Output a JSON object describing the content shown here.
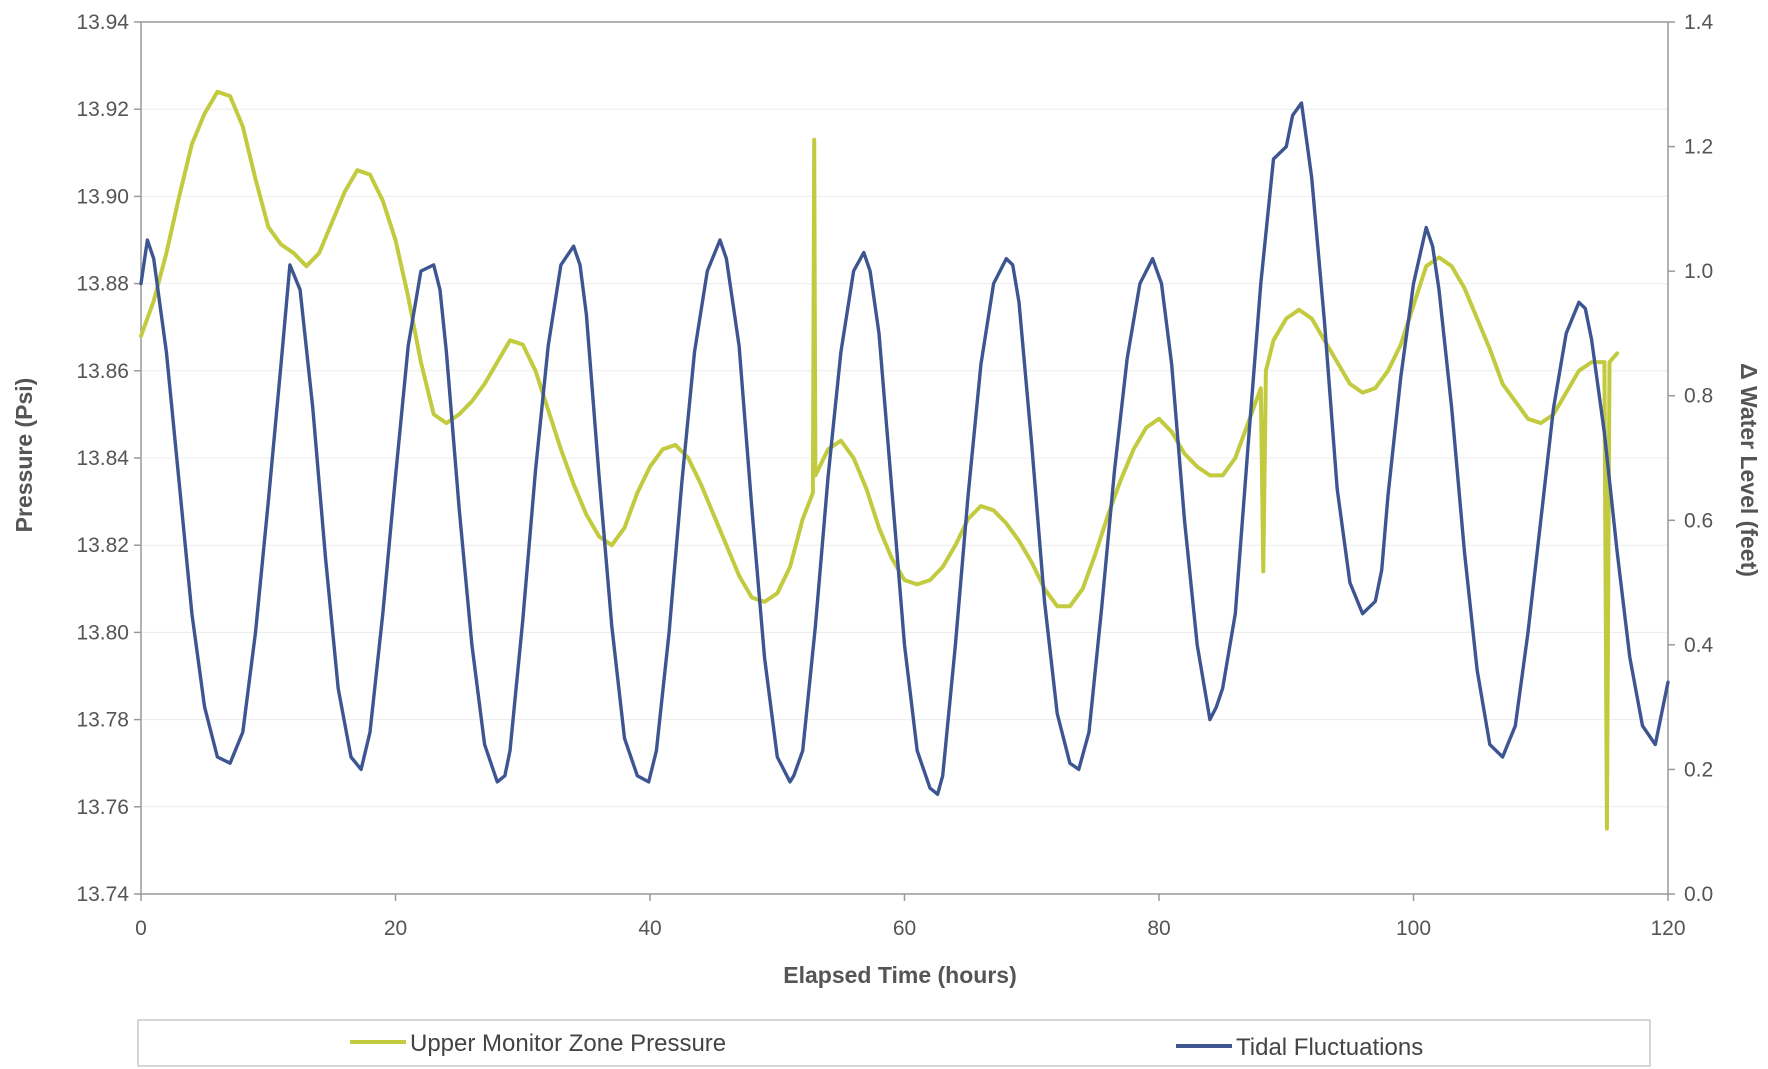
{
  "chart_data": {
    "type": "line",
    "xlabel": "Elapsed Time (hours)",
    "ylabel_left": "Pressure (Psi)",
    "ylabel_right": "Δ Water Level (feet)",
    "xlim": [
      0,
      120
    ],
    "ylim_left": [
      13.74,
      13.94
    ],
    "ylim_right": [
      0.0,
      1.4
    ],
    "x_ticks": [
      "0",
      "20",
      "40",
      "60",
      "80",
      "100",
      "120"
    ],
    "y_left_ticks": [
      "13.74",
      "13.76",
      "13.78",
      "13.80",
      "13.82",
      "13.84",
      "13.86",
      "13.88",
      "13.90",
      "13.92",
      "13.94"
    ],
    "y_right_ticks": [
      "0.0",
      "0.2",
      "0.4",
      "0.6",
      "0.8",
      "1.0",
      "1.2",
      "1.4"
    ],
    "grid": "horizontal",
    "legend": "bottom",
    "colors": {
      "pressure": "#c2cb3f",
      "tidal": "#3d5591",
      "axis": "#999999",
      "grid": "#ececec"
    },
    "series": [
      {
        "name": "Upper Monitor Zone Pressure",
        "axis": "left",
        "x": [
          0,
          1,
          2,
          3,
          4,
          5,
          6,
          7,
          8,
          9,
          10,
          11,
          12,
          13,
          14,
          15,
          16,
          17,
          18,
          19,
          20,
          21,
          22,
          23,
          24,
          25,
          26,
          27,
          28,
          29,
          30,
          31,
          32,
          33,
          34,
          35,
          36,
          37,
          38,
          39,
          40,
          41,
          42,
          43,
          44,
          45,
          46,
          47,
          48,
          49,
          50,
          51,
          52,
          52.8,
          52.9,
          53,
          54,
          55,
          56,
          57,
          58,
          59,
          60,
          61,
          62,
          63,
          64,
          65,
          66,
          67,
          68,
          69,
          70,
          71,
          72,
          73,
          74,
          75,
          76,
          77,
          78,
          79,
          80,
          81,
          82,
          83,
          84,
          85,
          86,
          87,
          88,
          88.2,
          88.4,
          89,
          90,
          91,
          92,
          93,
          94,
          95,
          96,
          97,
          98,
          99,
          100,
          101,
          102,
          103,
          104,
          105,
          106,
          107,
          108,
          109,
          110,
          111,
          112,
          113,
          114,
          115,
          115.2,
          115.4,
          116
        ],
        "y": [
          13.868,
          13.876,
          13.887,
          13.9,
          13.912,
          13.919,
          13.924,
          13.923,
          13.916,
          13.904,
          13.893,
          13.889,
          13.887,
          13.884,
          13.887,
          13.894,
          13.901,
          13.906,
          13.905,
          13.899,
          13.89,
          13.877,
          13.862,
          13.85,
          13.848,
          13.85,
          13.853,
          13.857,
          13.862,
          13.867,
          13.866,
          13.86,
          13.851,
          13.842,
          13.834,
          13.827,
          13.822,
          13.82,
          13.824,
          13.832,
          13.838,
          13.842,
          13.843,
          13.84,
          13.834,
          13.827,
          13.82,
          13.813,
          13.808,
          13.807,
          13.809,
          13.815,
          13.826,
          13.832,
          13.913,
          13.836,
          13.842,
          13.844,
          13.84,
          13.833,
          13.824,
          13.817,
          13.812,
          13.811,
          13.812,
          13.815,
          13.82,
          13.826,
          13.829,
          13.828,
          13.825,
          13.821,
          13.816,
          13.81,
          13.806,
          13.806,
          13.81,
          13.818,
          13.827,
          13.835,
          13.842,
          13.847,
          13.849,
          13.846,
          13.841,
          13.838,
          13.836,
          13.836,
          13.84,
          13.848,
          13.856,
          13.814,
          13.86,
          13.867,
          13.872,
          13.874,
          13.872,
          13.867,
          13.862,
          13.857,
          13.855,
          13.856,
          13.86,
          13.866,
          13.875,
          13.884,
          13.886,
          13.884,
          13.879,
          13.872,
          13.865,
          13.857,
          13.853,
          13.849,
          13.848,
          13.85,
          13.855,
          13.86,
          13.862,
          13.862,
          13.755,
          13.862,
          13.864
        ]
      },
      {
        "name": "Tidal Fluctuations",
        "axis": "right",
        "x": [
          0,
          0.5,
          1,
          2,
          3,
          4,
          5,
          6,
          7,
          8,
          9,
          10,
          11,
          11.7,
          12.5,
          13.5,
          14.5,
          15.5,
          16.5,
          17.3,
          18,
          19,
          20,
          21,
          22,
          23,
          23.5,
          24,
          25,
          26,
          27,
          28,
          28.6,
          29,
          30,
          31,
          32,
          33,
          34,
          34.5,
          35,
          36,
          37,
          38,
          39,
          39.9,
          40.5,
          41.5,
          42.5,
          43.5,
          44.5,
          45.5,
          46,
          47,
          48,
          49,
          50,
          51,
          51.3,
          52,
          53,
          54,
          55,
          56,
          56.8,
          57.3,
          58,
          59,
          60,
          61,
          62,
          62.6,
          63,
          64,
          65,
          66,
          67,
          68,
          68.5,
          69,
          70,
          71,
          72,
          73,
          73.7,
          74.5,
          75.5,
          76.5,
          77.5,
          78.5,
          79.5,
          80.2,
          81,
          82,
          83,
          84,
          84.5,
          85,
          86,
          87,
          88,
          89,
          90,
          90.5,
          91.2,
          92,
          93,
          94,
          95,
          96,
          97,
          97.5,
          98,
          99,
          100,
          101,
          101.5,
          102,
          103,
          104,
          105,
          106,
          107,
          108,
          109,
          110,
          111,
          112,
          113,
          113.5,
          114,
          115,
          116,
          117,
          118,
          119,
          120
        ],
        "y": [
          0.98,
          1.05,
          1.02,
          0.87,
          0.66,
          0.45,
          0.3,
          0.22,
          0.21,
          0.26,
          0.42,
          0.63,
          0.85,
          1.01,
          0.97,
          0.78,
          0.54,
          0.33,
          0.22,
          0.2,
          0.26,
          0.45,
          0.67,
          0.88,
          1.0,
          1.01,
          0.97,
          0.87,
          0.62,
          0.4,
          0.24,
          0.18,
          0.19,
          0.23,
          0.44,
          0.68,
          0.88,
          1.01,
          1.04,
          1.01,
          0.93,
          0.67,
          0.43,
          0.25,
          0.19,
          0.18,
          0.23,
          0.42,
          0.66,
          0.87,
          1.0,
          1.05,
          1.02,
          0.88,
          0.62,
          0.38,
          0.22,
          0.18,
          0.19,
          0.23,
          0.43,
          0.67,
          0.87,
          1.0,
          1.03,
          1.0,
          0.9,
          0.65,
          0.4,
          0.23,
          0.17,
          0.16,
          0.19,
          0.4,
          0.64,
          0.85,
          0.98,
          1.02,
          1.01,
          0.95,
          0.72,
          0.47,
          0.29,
          0.21,
          0.2,
          0.26,
          0.46,
          0.68,
          0.86,
          0.98,
          1.02,
          0.98,
          0.85,
          0.6,
          0.4,
          0.28,
          0.3,
          0.33,
          0.45,
          0.72,
          0.98,
          1.18,
          1.2,
          1.25,
          1.27,
          1.15,
          0.92,
          0.65,
          0.5,
          0.45,
          0.47,
          0.52,
          0.64,
          0.83,
          0.98,
          1.07,
          1.04,
          0.97,
          0.78,
          0.55,
          0.36,
          0.24,
          0.22,
          0.27,
          0.42,
          0.6,
          0.78,
          0.9,
          0.95,
          0.94,
          0.89,
          0.74,
          0.55,
          0.38,
          0.27,
          0.24,
          0.34
        ]
      }
    ]
  }
}
